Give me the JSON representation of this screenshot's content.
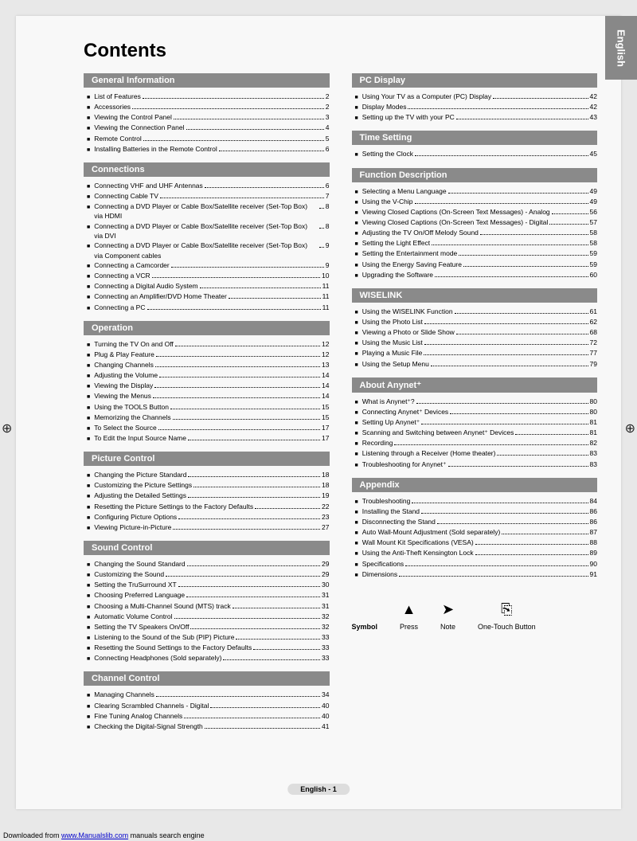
{
  "lang_tab": "English",
  "title": "Contents",
  "page_footer": "English - 1",
  "download_prefix": "Downloaded from ",
  "download_link": "www.Manualslib.com",
  "download_suffix": " manuals search engine",
  "symbols_label": "Symbol",
  "symbols": [
    {
      "glyph": "▲",
      "label": "Press"
    },
    {
      "glyph": "➤",
      "label": "Note"
    },
    {
      "glyph": "⎘",
      "label": "One-Touch Button"
    }
  ],
  "left": [
    {
      "header": "General Information",
      "items": [
        {
          "t": "List of Features",
          "p": "2"
        },
        {
          "t": "Accessories",
          "p": "2"
        },
        {
          "t": "Viewing the Control Panel",
          "p": "3"
        },
        {
          "t": "Viewing the Connection Panel",
          "p": "4"
        },
        {
          "t": "Remote Control",
          "p": "5"
        },
        {
          "t": "Installing Batteries in the Remote Control",
          "p": "6"
        }
      ]
    },
    {
      "header": "Connections",
      "items": [
        {
          "t": "Connecting VHF and UHF Antennas",
          "p": "6"
        },
        {
          "t": "Connecting Cable TV",
          "p": "7"
        },
        {
          "t": "Connecting a DVD Player or Cable Box/Satellite receiver (Set-Top Box) via HDMI",
          "p": "8"
        },
        {
          "t": "Connecting a DVD Player or Cable Box/Satellite receiver (Set-Top Box) via DVI",
          "p": "8"
        },
        {
          "t": "Connecting a DVD Player or Cable Box/Satellite receiver (Set-Top Box) via Component cables",
          "p": "9"
        },
        {
          "t": "Connecting a Camcorder",
          "p": "9"
        },
        {
          "t": "Connecting a VCR",
          "p": "10"
        },
        {
          "t": "Connecting a Digital Audio System",
          "p": "11"
        },
        {
          "t": "Connecting an Amplifier/DVD Home Theater",
          "p": "11"
        },
        {
          "t": "Connecting a PC",
          "p": "11"
        }
      ]
    },
    {
      "header": "Operation",
      "items": [
        {
          "t": "Turning the TV On and Off",
          "p": "12"
        },
        {
          "t": "Plug & Play Feature",
          "p": "12"
        },
        {
          "t": "Changing Channels",
          "p": "13"
        },
        {
          "t": "Adjusting the Volume",
          "p": "14"
        },
        {
          "t": "Viewing the Display",
          "p": "14"
        },
        {
          "t": "Viewing the Menus",
          "p": "14"
        },
        {
          "t": "Using the TOOLS Button",
          "p": "15"
        },
        {
          "t": "Memorizing the Channels",
          "p": "15"
        },
        {
          "t": "To Select the Source",
          "p": "17"
        },
        {
          "t": "To Edit the Input Source Name",
          "p": "17"
        }
      ]
    },
    {
      "header": "Picture Control",
      "items": [
        {
          "t": "Changing the Picture Standard",
          "p": "18"
        },
        {
          "t": "Customizing the Picture Settings",
          "p": "18"
        },
        {
          "t": "Adjusting the Detailed Settings",
          "p": "19"
        },
        {
          "t": "Resetting the Picture Settings to the Factory Defaults",
          "p": "22"
        },
        {
          "t": "Configuring Picture Options",
          "p": "23"
        },
        {
          "t": "Viewing Picture-in-Picture",
          "p": "27"
        }
      ]
    },
    {
      "header": "Sound Control",
      "items": [
        {
          "t": "Changing the Sound Standard",
          "p": "29"
        },
        {
          "t": "Customizing the Sound",
          "p": "29"
        },
        {
          "t": "Setting the TruSurround XT",
          "p": "30"
        },
        {
          "t": "Choosing Preferred Language",
          "p": "31"
        },
        {
          "t": "Choosing a Multi-Channel Sound (MTS) track",
          "p": "31"
        },
        {
          "t": "Automatic Volume Control",
          "p": "32"
        },
        {
          "t": "Setting the TV Speakers On/Off",
          "p": "32"
        },
        {
          "t": "Listening to the Sound of the Sub (PIP) Picture",
          "p": "33"
        },
        {
          "t": "Resetting the Sound Settings to the Factory Defaults",
          "p": "33"
        },
        {
          "t": "Connecting Headphones (Sold separately)",
          "p": "33"
        }
      ]
    },
    {
      "header": "Channel Control",
      "items": [
        {
          "t": "Managing Channels",
          "p": "34"
        },
        {
          "t": "Clearing Scrambled Channels - Digital",
          "p": "40"
        },
        {
          "t": "Fine Tuning Analog Channels",
          "p": "40"
        },
        {
          "t": "Checking the Digital-Signal Strength",
          "p": "41"
        }
      ]
    }
  ],
  "right": [
    {
      "header": "PC Display",
      "items": [
        {
          "t": "Using Your TV as a Computer (PC) Display",
          "p": "42"
        },
        {
          "t": "Display Modes",
          "p": "42"
        },
        {
          "t": "Setting up the TV with your PC",
          "p": "43"
        }
      ]
    },
    {
      "header": "Time Setting",
      "items": [
        {
          "t": "Setting the Clock",
          "p": "45"
        }
      ]
    },
    {
      "header": "Function Description",
      "items": [
        {
          "t": "Selecting a Menu Language",
          "p": "49"
        },
        {
          "t": "Using the V-Chip",
          "p": "49"
        },
        {
          "t": "Viewing Closed Captions (On-Screen Text Messages) - Analog",
          "p": "56"
        },
        {
          "t": "Viewing Closed Captions (On-Screen Text Messages) - Digital",
          "p": "57"
        },
        {
          "t": "Adjusting the TV On/Off Melody Sound",
          "p": "58"
        },
        {
          "t": "Setting the Light Effect",
          "p": "58"
        },
        {
          "t": "Setting the Entertainment mode",
          "p": "59"
        },
        {
          "t": "Using the Energy Saving Feature",
          "p": "59"
        },
        {
          "t": "Upgrading the Software",
          "p": "60"
        }
      ]
    },
    {
      "header": "WISELINK",
      "items": [
        {
          "t": "Using the WISELINK Function",
          "p": "61"
        },
        {
          "t": "Using the Photo List",
          "p": "62"
        },
        {
          "t": "Viewing a Photo or Slide Show",
          "p": "68"
        },
        {
          "t": "Using the Music List",
          "p": "72"
        },
        {
          "t": "Playing a Music File",
          "p": "77"
        },
        {
          "t": "Using the Setup Menu",
          "p": "79"
        }
      ]
    },
    {
      "header": "About Anynet⁺",
      "items": [
        {
          "t": "What is Anynet⁺?",
          "p": "80"
        },
        {
          "t": "Connecting Anynet⁺ Devices",
          "p": "80"
        },
        {
          "t": "Setting Up Anynet⁺",
          "p": "81"
        },
        {
          "t": "Scanning and Switching between Anynet⁺ Devices",
          "p": "81"
        },
        {
          "t": "Recording",
          "p": "82"
        },
        {
          "t": "Listening through a Receiver (Home theater)",
          "p": "83"
        },
        {
          "t": "Troubleshooting for Anynet⁺",
          "p": "83"
        }
      ]
    },
    {
      "header": "Appendix",
      "items": [
        {
          "t": "Troubleshooting",
          "p": "84"
        },
        {
          "t": "Installing the Stand",
          "p": "86"
        },
        {
          "t": "Disconnecting the Stand",
          "p": "86"
        },
        {
          "t": "Auto Wall-Mount Adjustment (Sold separately)",
          "p": "87"
        },
        {
          "t": "Wall Mount Kit Specifications (VESA)",
          "p": "88"
        },
        {
          "t": "Using the Anti-Theft Kensington Lock",
          "p": "89"
        },
        {
          "t": "Specifications",
          "p": "90"
        },
        {
          "t": "Dimensions",
          "p": "91"
        }
      ]
    }
  ]
}
